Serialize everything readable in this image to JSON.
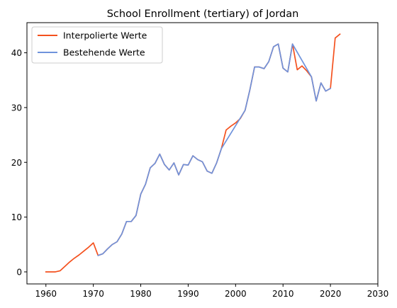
{
  "chart_data": {
    "type": "line",
    "title": "School Enrollment (tertiary) of Jordan",
    "xlabel": "",
    "ylabel": "",
    "xlim": [
      1956,
      2030
    ],
    "ylim": [
      -2.2,
      45.5
    ],
    "xticks": [
      1960,
      1970,
      1980,
      1990,
      2000,
      2010,
      2020,
      2030
    ],
    "yticks": [
      0,
      10,
      20,
      30,
      40
    ],
    "grid": false,
    "legend_position": "upper-left",
    "colors": {
      "interpolated": "#f4511e",
      "existing": "#6f93dc"
    },
    "series": [
      {
        "name": "Interpolierte Werte",
        "color": "#f4511e",
        "x": [
          1960,
          1961,
          1962,
          1963,
          1964,
          1965,
          1966,
          1967,
          1968,
          1969,
          1970,
          1971,
          1972,
          1973,
          1974,
          1975,
          1976,
          1977,
          1978,
          1979,
          1980,
          1981,
          1982,
          1983,
          1984,
          1985,
          1986,
          1987,
          1988,
          1989,
          1990,
          1991,
          1992,
          1993,
          1994,
          1995,
          1996,
          1997,
          1998,
          1999,
          2000,
          2001,
          2002,
          2003,
          2004,
          2005,
          2006,
          2007,
          2008,
          2009,
          2010,
          2011,
          2012,
          2013,
          2014,
          2015,
          2016,
          2017,
          2018,
          2019,
          2020,
          2021,
          2022
        ],
        "values": [
          0.0,
          0.0,
          0.0,
          0.2,
          1.0,
          1.8,
          2.5,
          3.1,
          3.8,
          4.5,
          5.3,
          3.0,
          3.3,
          4.2,
          5.0,
          5.5,
          6.9,
          9.2,
          9.2,
          10.3,
          14.2,
          16.0,
          19.0,
          19.8,
          21.5,
          19.6,
          18.6,
          19.9,
          17.7,
          19.6,
          19.5,
          21.2,
          20.5,
          20.1,
          18.4,
          18.0,
          19.9,
          22.5,
          25.9,
          26.6,
          27.2,
          28.0,
          29.5,
          33.2,
          37.4,
          37.4,
          37.1,
          38.4,
          41.1,
          41.6,
          37.2,
          36.5,
          41.6,
          36.9,
          37.6,
          36.7,
          35.6,
          31.2,
          34.5,
          33.0,
          33.5,
          42.7,
          43.4
        ]
      },
      {
        "name": "Bestehende Werte",
        "color": "#6f93dc",
        "x": [
          1971,
          1972,
          1973,
          1974,
          1975,
          1976,
          1977,
          1978,
          1979,
          1980,
          1981,
          1982,
          1983,
          1984,
          1985,
          1986,
          1987,
          1988,
          1989,
          1990,
          1991,
          1992,
          1993,
          1994,
          1995,
          1996,
          1997,
          2002,
          2003,
          2004,
          2005,
          2006,
          2007,
          2008,
          2009,
          2010,
          2011,
          2012,
          2016,
          2017,
          2018,
          2019,
          2020
        ],
        "values": [
          3.0,
          3.3,
          4.2,
          5.0,
          5.5,
          6.9,
          9.2,
          9.2,
          10.3,
          14.2,
          16.0,
          19.0,
          19.8,
          21.5,
          19.6,
          18.6,
          19.9,
          17.7,
          19.6,
          19.5,
          21.2,
          20.5,
          20.1,
          18.4,
          18.0,
          19.9,
          22.5,
          29.5,
          33.2,
          37.4,
          37.4,
          37.1,
          38.4,
          41.1,
          41.6,
          37.2,
          36.5,
          41.6,
          35.6,
          31.2,
          34.5,
          33.0,
          33.5
        ]
      }
    ]
  }
}
